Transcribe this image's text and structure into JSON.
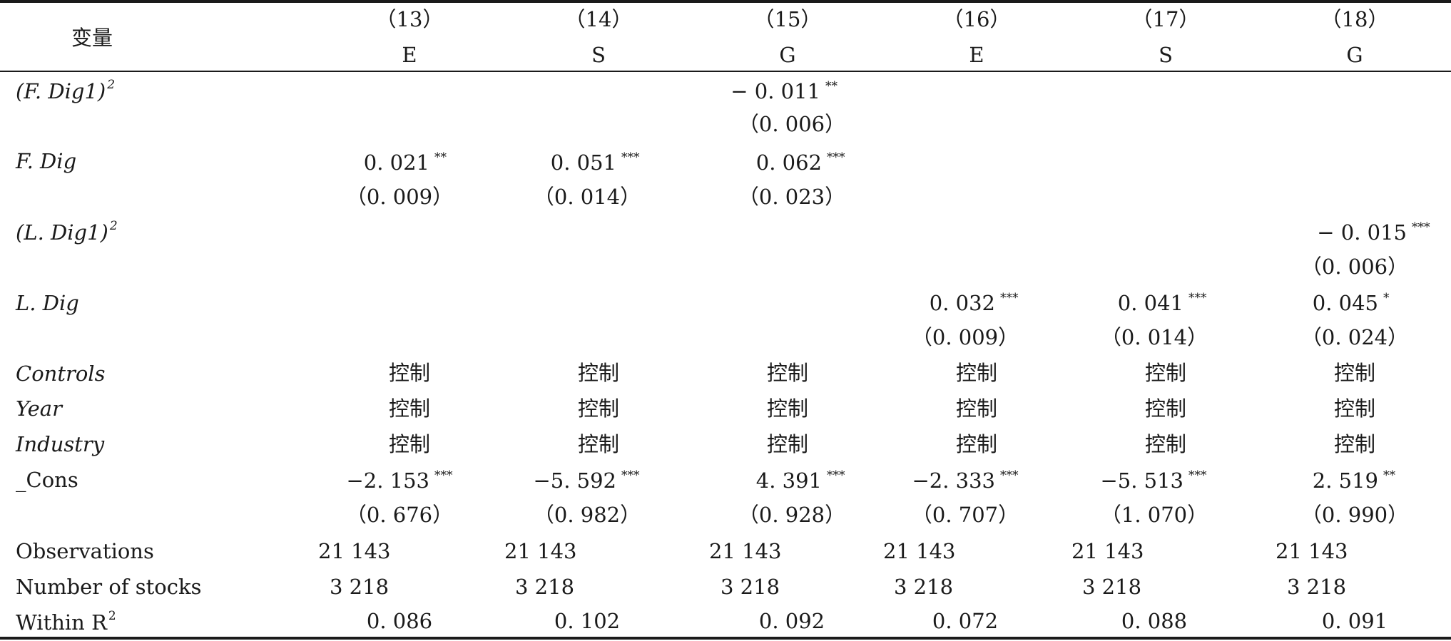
{
  "table": {
    "header": {
      "variable_label": "变量",
      "columns": [
        {
          "num": "（13）",
          "dim": "E"
        },
        {
          "num": "（14）",
          "dim": "S"
        },
        {
          "num": "（15）",
          "dim": "G"
        },
        {
          "num": "（16）",
          "dim": "E"
        },
        {
          "num": "（17）",
          "dim": "S"
        },
        {
          "num": "（18）",
          "dim": "G"
        }
      ]
    },
    "rows": {
      "f_dig1_sq": {
        "label": "(F. Dig1)",
        "sup": "2",
        "coef": [
          "",
          "",
          "− 0. 011",
          "",
          "",
          ""
        ],
        "stars": [
          "",
          "",
          "**",
          "",
          "",
          ""
        ],
        "se": [
          "",
          "",
          "（0. 006）",
          "",
          "",
          ""
        ]
      },
      "f_dig": {
        "label": "F. Dig",
        "coef": [
          "0. 021",
          "0. 051",
          "0. 062",
          "",
          "",
          ""
        ],
        "stars": [
          "**",
          "***",
          "***",
          "",
          "",
          ""
        ],
        "se": [
          "（0. 009）",
          "（0. 014）",
          "（0. 023）",
          "",
          "",
          ""
        ]
      },
      "l_dig1_sq": {
        "label": "(L. Dig1)",
        "sup": "2",
        "coef": [
          "",
          "",
          "",
          "",
          "",
          "− 0. 015"
        ],
        "stars": [
          "",
          "",
          "",
          "",
          "",
          "***"
        ],
        "se": [
          "",
          "",
          "",
          "",
          "",
          "（0. 006）"
        ]
      },
      "l_dig": {
        "label": "L. Dig",
        "coef": [
          "",
          "",
          "",
          "0. 032",
          "0. 041",
          "0. 045"
        ],
        "stars": [
          "",
          "",
          "",
          "***",
          "***",
          "*"
        ],
        "se": [
          "",
          "",
          "",
          "（0. 009）",
          "（0. 014）",
          "（0. 024）"
        ]
      },
      "controls": {
        "label": "Controls",
        "values": [
          "控制",
          "控制",
          "控制",
          "控制",
          "控制",
          "控制"
        ]
      },
      "year": {
        "label": "Year",
        "values": [
          "控制",
          "控制",
          "控制",
          "控制",
          "控制",
          "控制"
        ]
      },
      "industry": {
        "label": "Industry",
        "values": [
          "控制",
          "控制",
          "控制",
          "控制",
          "控制",
          "控制"
        ]
      },
      "cons": {
        "label": "_Cons",
        "coef": [
          "−2. 153",
          "−5. 592",
          "4. 391",
          "−2. 333",
          "−5. 513",
          "2. 519"
        ],
        "stars": [
          "***",
          "***",
          "***",
          "***",
          "***",
          "**"
        ],
        "se": [
          "（0. 676）",
          "（0. 982）",
          "（0. 928）",
          "（0. 707）",
          "（1. 070）",
          "（0. 990）"
        ]
      },
      "observations": {
        "label": "Observations",
        "values": [
          "21 143",
          "21 143",
          "21 143",
          "21 143",
          "21 143",
          "21 143"
        ]
      },
      "stocks": {
        "label": "Number of stocks",
        "values": [
          "3 218",
          "3 218",
          "3 218",
          "3 218",
          "3 218",
          "3 218"
        ]
      },
      "within_r2": {
        "label": "Within R",
        "sup": "2",
        "values": [
          "0. 086",
          "0. 102",
          "0. 092",
          "0. 072",
          "0. 088",
          "0. 091"
        ]
      }
    }
  }
}
